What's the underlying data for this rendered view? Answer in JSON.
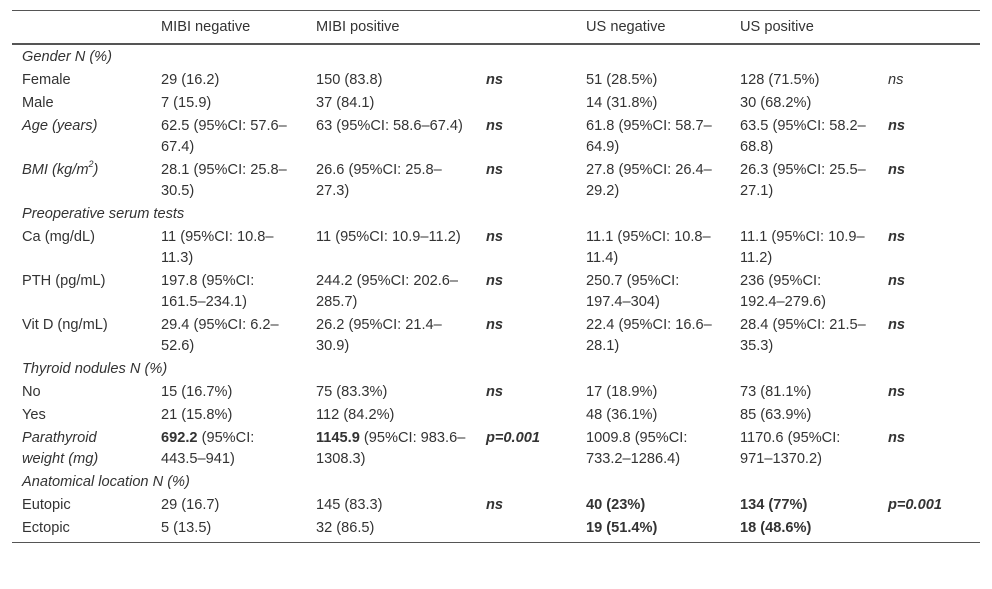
{
  "header": [
    "",
    "MIBI negative",
    "MIBI positive",
    "",
    "US negative",
    "US positive",
    ""
  ],
  "rows": [
    {
      "type": "section",
      "label": "Gender N (%)"
    },
    {
      "type": "row",
      "cells": [
        "Female",
        "29 (16.2)",
        "150 (83.8)",
        "ns",
        "51 (28.5%)",
        "128 (71.5%)",
        "ns"
      ],
      "styles": [
        "",
        "",
        "",
        "bi",
        "",
        "",
        "it"
      ]
    },
    {
      "type": "row",
      "cells": [
        "Male",
        "7 (15.9)",
        "37 (84.1)",
        "",
        "14 (31.8%)",
        "30 (68.2%)",
        ""
      ],
      "styles": [
        "",
        "",
        "",
        "",
        "",
        "",
        ""
      ]
    },
    {
      "type": "row",
      "cells": [
        "Age (years)",
        "62.5 (95%CI: 57.6–67.4)",
        "63 (95%CI: 58.6–67.4)",
        "ns",
        "61.8 (95%CI: 58.7–64.9)",
        "63.5 (95%CI: 58.2–68.8)",
        "ns"
      ],
      "styles": [
        "it",
        "",
        "",
        "bi",
        "",
        "",
        "bi"
      ]
    },
    {
      "type": "row",
      "cells": [
        "BMI (kg/m2)",
        "28.1 (95%CI: 25.8–30.5)",
        "26.6 (95%CI: 25.8–27.3)",
        "ns",
        "27.8 (95%CI: 26.4–29.2)",
        "26.3 (95%CI: 25.5–27.1)",
        "ns"
      ],
      "styles": [
        "it",
        "",
        "",
        "bi",
        "",
        "",
        "bi"
      ]
    },
    {
      "type": "section",
      "label": "Preoperative serum tests"
    },
    {
      "type": "row",
      "cells": [
        "Ca (mg/dL)",
        "11 (95%CI: 10.8–11.3)",
        "11 (95%CI: 10.9–11.2)",
        "ns",
        "11.1 (95%CI: 10.8–11.4)",
        "11.1 (95%CI: 10.9–11.2)",
        "ns"
      ],
      "styles": [
        "",
        "",
        "",
        "bi",
        "",
        "",
        "bi"
      ]
    },
    {
      "type": "row",
      "cells": [
        "PTH (pg/mL)",
        "197.8 (95%CI: 161.5–234.1)",
        "244.2 (95%CI: 202.6–285.7)",
        "ns",
        "250.7 (95%CI: 197.4–304)",
        "236 (95%CI: 192.4–279.6)",
        "ns"
      ],
      "styles": [
        "",
        "",
        "",
        "bi",
        "",
        "",
        "bi"
      ]
    },
    {
      "type": "row",
      "cells": [
        "Vit D (ng/mL)",
        "29.4 (95%CI: 6.2–52.6)",
        "26.2 (95%CI: 21.4–30.9)",
        "ns",
        "22.4 (95%CI: 16.6–28.1)",
        "28.4 (95%CI: 21.5–35.3)",
        "ns"
      ],
      "styles": [
        "",
        "",
        "",
        "bi",
        "",
        "",
        "bi"
      ]
    },
    {
      "type": "section",
      "label": "Thyroid nodules N (%)"
    },
    {
      "type": "row",
      "cells": [
        "No",
        "15 (16.7%)",
        "75 (83.3%)",
        "ns",
        "17 (18.9%)",
        "73 (81.1%)",
        "ns"
      ],
      "styles": [
        "",
        "",
        "",
        "bi",
        "",
        "",
        "bi"
      ]
    },
    {
      "type": "row",
      "cells": [
        "Yes",
        "21 (15.8%)",
        "112 (84.2%)",
        "",
        "48 (36.1%)",
        "85 (63.9%)",
        ""
      ],
      "styles": [
        "",
        "",
        "",
        "",
        "",
        "",
        ""
      ]
    },
    {
      "type": "row",
      "cells": [
        "Parathyroid weight (mg)",
        "692.2|(95%CI: 443.5–941)",
        "1145.9|(95%CI: 983.6–1308.3)",
        "p=0.001",
        "1009.8 (95%CI: 733.2–1286.4)",
        "1170.6 (95%CI: 971–1370.2)",
        "ns"
      ],
      "styles": [
        "it",
        "leadbold",
        "leadbold",
        "bi",
        "",
        "",
        "bi"
      ]
    },
    {
      "type": "section",
      "label": "Anatomical location N (%)"
    },
    {
      "type": "row",
      "cells": [
        "Eutopic",
        "29 (16.7)",
        "145 (83.3)",
        "ns",
        "40 (23%)",
        "134 (77%)",
        "p=0.001"
      ],
      "styles": [
        "",
        "",
        "",
        "bi",
        "b",
        "b",
        "bi"
      ]
    },
    {
      "type": "row",
      "cells": [
        "Ectopic",
        "5 (13.5)",
        "32 (86.5)",
        "",
        "19 (51.4%)",
        "18 (48.6%)",
        ""
      ],
      "styles": [
        "",
        "",
        "",
        "",
        "b",
        "b",
        ""
      ]
    }
  ]
}
